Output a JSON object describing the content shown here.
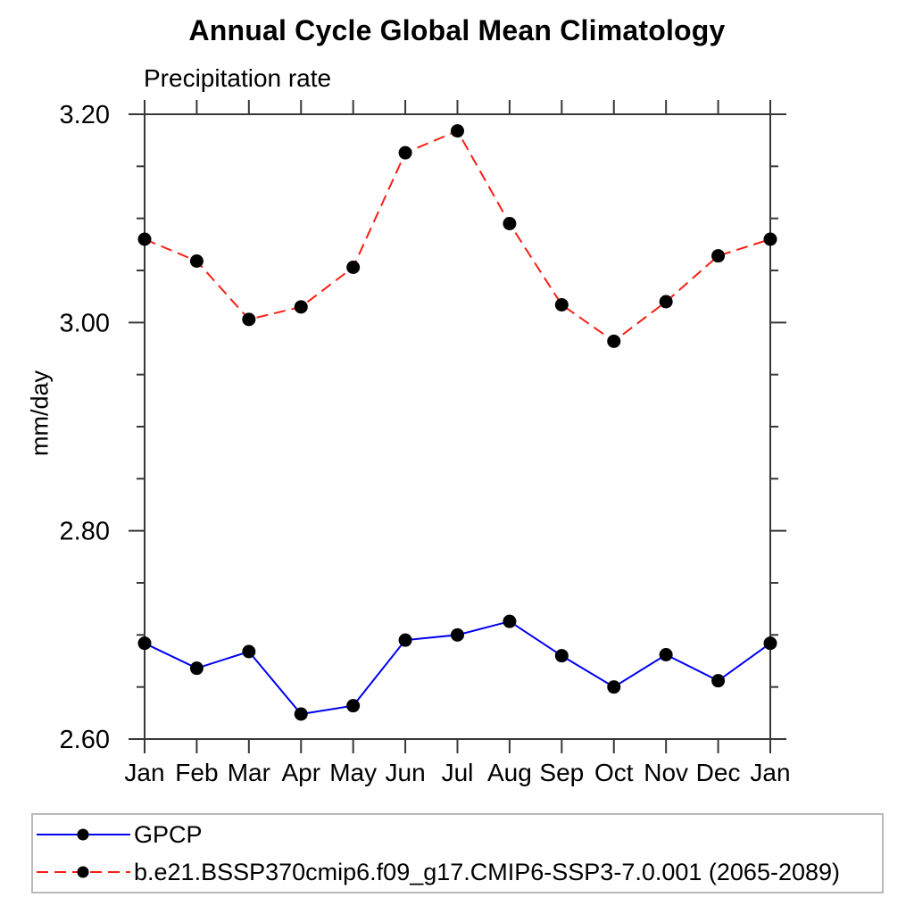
{
  "chart_data": {
    "type": "line",
    "title": "Annual Cycle Global Mean Climatology",
    "subtitle": "Precipitation rate",
    "ylabel": "mm/day",
    "xlabel": "",
    "ylim": [
      2.6,
      3.2
    ],
    "y_major_ticks": [
      2.6,
      2.8,
      3.0,
      3.2
    ],
    "y_tick_labels": [
      "2.60",
      "2.80",
      "3.00",
      "3.20"
    ],
    "y_minor_step": 0.05,
    "grid": false,
    "legend_position": "bottom-box",
    "categories": [
      "Jan",
      "Feb",
      "Mar",
      "Apr",
      "May",
      "Jun",
      "Jul",
      "Aug",
      "Sep",
      "Oct",
      "Nov",
      "Dec",
      "Jan"
    ],
    "series": [
      {
        "name": "GPCP",
        "color": "#0000f0",
        "line_style": "solid",
        "marker": "filled-circle",
        "marker_color": "#000000",
        "values": [
          2.692,
          2.668,
          2.684,
          2.624,
          2.632,
          2.695,
          2.7,
          2.713,
          2.68,
          2.65,
          2.681,
          2.656,
          2.692
        ]
      },
      {
        "name": "b.e21.BSSP370cmip6.f09_g17.CMIP6-SSP3-7.0.001 (2065-2089)",
        "color": "#f81e14",
        "line_style": "dashed",
        "marker": "filled-circle",
        "marker_color": "#000000",
        "values": [
          3.08,
          3.059,
          3.003,
          3.015,
          3.053,
          3.163,
          3.184,
          3.095,
          3.017,
          2.982,
          3.02,
          3.064,
          3.08
        ]
      }
    ]
  },
  "colors": {
    "axis": "#383838",
    "text": "#000000",
    "legend_border": "#b9b9b9",
    "background": "#ffffff"
  }
}
